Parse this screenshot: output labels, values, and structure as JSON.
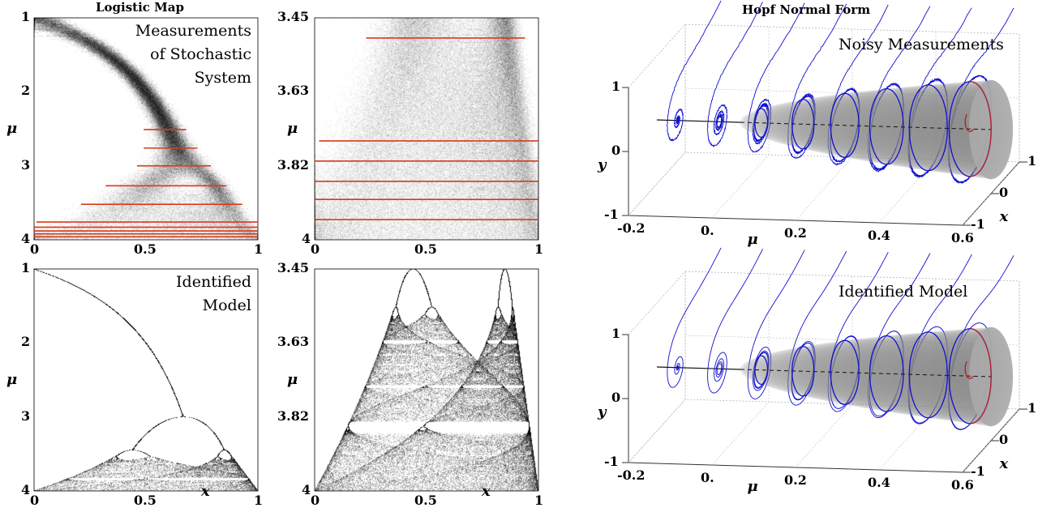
{
  "logistic": {
    "title": "Logistic Map",
    "ylabel": "μ",
    "xlabel": "x",
    "x_ticks": [
      "0",
      "0.5",
      "1"
    ],
    "panels": [
      {
        "id": "full-noisy",
        "annotation": [
          "Measurements",
          "of Stochastic",
          "System"
        ],
        "mu_range": [
          1,
          4
        ],
        "y_ticks": [
          "1",
          "2",
          "3",
          "4"
        ],
        "noisy": true,
        "red_lines": [
          {
            "mu": 2.51,
            "x": [
              0.49,
              0.68
            ]
          },
          {
            "mu": 2.76,
            "x": [
              0.49,
              0.73
            ]
          },
          {
            "mu": 3.0,
            "x": [
              0.46,
              0.79
            ]
          },
          {
            "mu": 3.27,
            "x": [
              0.32,
              0.86
            ]
          },
          {
            "mu": 3.52,
            "x": [
              0.21,
              0.93
            ]
          },
          {
            "mu": 3.76,
            "x": [
              0.01,
              1
            ]
          },
          {
            "mu": 3.83,
            "x": [
              0,
              1
            ]
          },
          {
            "mu": 3.88,
            "x": [
              0,
              1
            ]
          },
          {
            "mu": 3.92,
            "x": [
              0,
              1
            ]
          },
          {
            "mu": 3.96,
            "x": [
              0,
              1
            ]
          }
        ]
      },
      {
        "id": "zoom-noisy",
        "annotation": [],
        "mu_range": [
          3.45,
          4
        ],
        "y_ticks": [
          "3.45",
          "3.63",
          "3.82",
          "4"
        ],
        "noisy": true,
        "red_lines": [
          {
            "mu": 3.5,
            "x": [
              0.23,
              0.94
            ]
          },
          {
            "mu": 3.755,
            "x": [
              0.02,
              1
            ]
          },
          {
            "mu": 3.805,
            "x": [
              0,
              1
            ]
          },
          {
            "mu": 3.855,
            "x": [
              0,
              1
            ]
          },
          {
            "mu": 3.9,
            "x": [
              0,
              1
            ]
          },
          {
            "mu": 3.95,
            "x": [
              0,
              1
            ]
          }
        ]
      },
      {
        "id": "full-model",
        "annotation": [
          "Identified",
          "Model"
        ],
        "mu_range": [
          1,
          4
        ],
        "y_ticks": [
          "1",
          "2",
          "3",
          "4"
        ],
        "noisy": false,
        "red_lines": []
      },
      {
        "id": "zoom-model",
        "annotation": [],
        "mu_range": [
          3.45,
          4
        ],
        "y_ticks": [
          "3.45",
          "3.63",
          "3.82",
          "4"
        ],
        "noisy": false,
        "red_lines": []
      }
    ]
  },
  "hopf": {
    "title": "Hopf Normal Form",
    "panels": [
      {
        "annotation": "Noisy Measurements"
      },
      {
        "annotation": "Identified Model"
      }
    ],
    "mu_ticks": [
      "-0.2",
      "0.",
      "0.2",
      "0.4",
      "0.6"
    ],
    "mu_tick_values": [
      -0.2,
      0,
      0.2,
      0.4,
      0.6
    ],
    "x_ticks": [
      "-1",
      "0",
      "1"
    ],
    "y_ticks": [
      "-1",
      "0",
      "1"
    ],
    "xlabel": "x",
    "ylabel": "y",
    "mulabel": "μ",
    "slices_mu": [
      -0.15,
      -0.05,
      0.05,
      0.15,
      0.25,
      0.35,
      0.45,
      0.55
    ],
    "colors": {
      "trajectory": "#1010d0",
      "inner": "#c02020",
      "cone": "#808080"
    }
  },
  "colors": {
    "red_line": "#d83a1a"
  }
}
